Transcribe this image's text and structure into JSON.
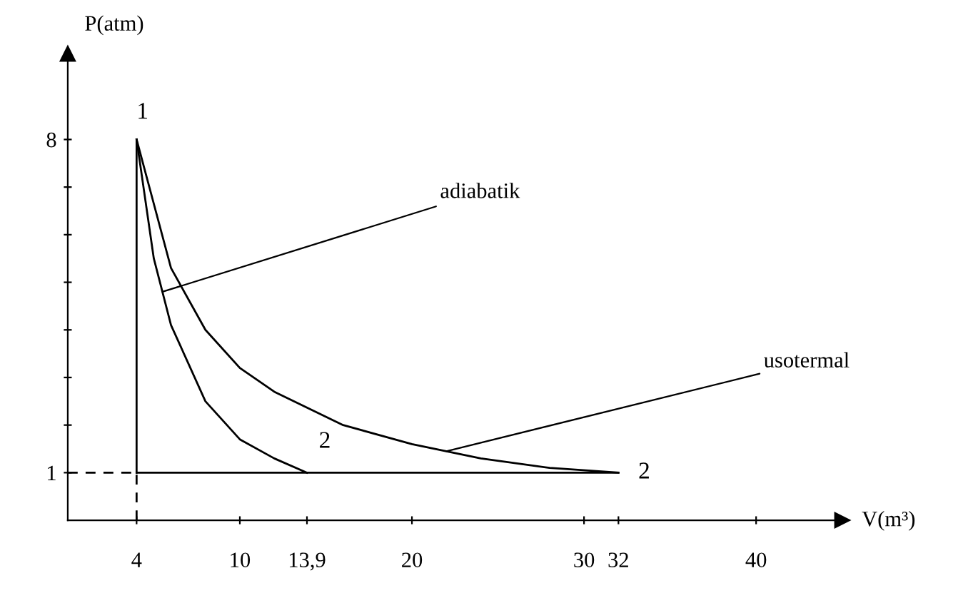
{
  "chart_data": {
    "type": "line",
    "xlabel": "V(m³)",
    "ylabel": "P(atm)",
    "xlim": [
      0,
      45
    ],
    "ylim": [
      0,
      9.8
    ],
    "xticks": [
      4,
      10,
      {
        "value": 13.9,
        "label": "13,9"
      },
      20,
      30,
      32,
      40
    ],
    "yticks": [
      1,
      {
        "value": 2,
        "label": null
      },
      {
        "value": 3,
        "label": null
      },
      {
        "value": 4,
        "label": null
      },
      {
        "value": 5,
        "label": null
      },
      {
        "value": 6,
        "label": null
      },
      {
        "value": 7,
        "label": null
      },
      8
    ],
    "grid": false,
    "marker": "none",
    "series": [
      {
        "color": "#000000",
        "x": [
          4,
          5,
          6,
          8,
          10,
          12,
          13.9
        ],
        "values": [
          8,
          5.5,
          4.1,
          2.5,
          1.7,
          1.3,
          1
        ]
      },
      {
        "color": "#000000",
        "x": [
          4,
          6,
          8,
          10,
          12,
          16,
          20,
          24,
          28,
          32
        ],
        "values": [
          8,
          5.3,
          4,
          3.2,
          2.7,
          2,
          1.6,
          1.3,
          1.1,
          1
        ]
      },
      {
        "color": "#000000",
        "x": [
          4,
          4
        ],
        "values": [
          1,
          8
        ]
      },
      {
        "color": "#000000",
        "x": [
          4,
          32
        ],
        "values": [
          1,
          1
        ]
      },
      {
        "color": "#000000",
        "x": [
          0,
          4
        ],
        "values": [
          1,
          1
        ],
        "line_style": "dashed"
      },
      {
        "color": "#000000",
        "x": [
          4,
          4
        ],
        "values": [
          0,
          1
        ],
        "line_style": "dashed"
      }
    ],
    "annotations": [
      {
        "text": "1",
        "x": 4,
        "y": 8
      },
      {
        "text": "2",
        "x": 13.9,
        "y": 1
      },
      {
        "text": "2",
        "x": 32,
        "y": 1
      },
      {
        "text": "adiabatik",
        "x": 5.5,
        "y": 4.8
      },
      {
        "text": "usotermal",
        "x": 22,
        "y": 1.45
      }
    ]
  }
}
